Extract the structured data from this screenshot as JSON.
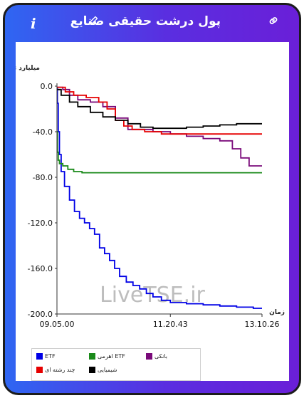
{
  "header": {
    "title": "پول درشت حقیقی صنایع",
    "icons": [
      "info-icon",
      "pencil-icon",
      "link-icon"
    ]
  },
  "watermark": "LiveTSE.ir",
  "chart_data": {
    "type": "line",
    "ylabel": "میلیارد تومان",
    "xlabel": "زمان",
    "ylim": [
      -200,
      0
    ],
    "yticks": [
      "0.0",
      "-40.0",
      "-80.0",
      "-120.0",
      "-160.0",
      "-200.0"
    ],
    "xticks": [
      "09.05.00",
      "11.20.43",
      "13.10.26"
    ],
    "xlim": [
      "09.05.00",
      "13.10.26"
    ],
    "legend_position": "bottom-left",
    "series": [
      {
        "name": "ETF",
        "color": "#0000e6",
        "x": [
          "09.05.00",
          "09.05.30",
          "09.06.30",
          "09.08.00",
          "09.10.00",
          "09.14.00",
          "09.20.00",
          "09.26.00",
          "09.32.00",
          "09.38.00",
          "09.44.00",
          "09.50.00",
          "09.56.00",
          "10.02.00",
          "10.08.00",
          "10.14.00",
          "10.20.00",
          "10.28.00",
          "10.36.00",
          "10.44.00",
          "10.52.00",
          "11.00.00",
          "11.10.00",
          "11.20.43",
          "11.40.00",
          "12.00.00",
          "12.20.00",
          "12.40.00",
          "13.00.00",
          "13.10.26"
        ],
        "values": [
          -2,
          -15,
          -40,
          -60,
          -75,
          -88,
          -100,
          -110,
          -116,
          -120,
          -125,
          -130,
          -142,
          -147,
          -153,
          -160,
          -167,
          -172,
          -175,
          -178,
          -182,
          -185,
          -188,
          -190,
          -191,
          -192,
          -193,
          -194,
          -195,
          -195
        ]
      },
      {
        "name": "ETF اهرمی",
        "color": "#1a8a1a",
        "x": [
          "09.05.00",
          "09.05.30",
          "09.06.30",
          "09.08.00",
          "09.12.00",
          "09.18.00",
          "09.25.00",
          "09.35.00",
          "10.00.00",
          "11.00.00",
          "12.00.00",
          "13.10.26"
        ],
        "values": [
          -40,
          -58,
          -65,
          -68,
          -70,
          -73,
          -75,
          -76,
          -76,
          -76,
          -76,
          -76
        ]
      },
      {
        "name": "بانکی",
        "color": "#7a0a7a",
        "x": [
          "09.05.00",
          "09.12.00",
          "09.20.00",
          "09.30.00",
          "09.45.00",
          "10.00.00",
          "10.15.00",
          "10.30.00",
          "11.00.00",
          "11.20.43",
          "11.40.00",
          "12.00.00",
          "12.20.00",
          "12.35.00",
          "12.45.00",
          "12.55.00",
          "13.10.26"
        ],
        "values": [
          -1,
          -3,
          -8,
          -12,
          -14,
          -18,
          -28,
          -38,
          -40,
          -42,
          -44,
          -46,
          -48,
          -55,
          -63,
          -70,
          -70
        ]
      },
      {
        "name": "چند رشته ای",
        "color": "#e60000",
        "x": [
          "09.05.00",
          "09.15.00",
          "09.25.00",
          "09.40.00",
          "09.55.00",
          "10.05.00",
          "10.15.00",
          "10.25.00",
          "10.35.00",
          "10.50.00",
          "11.10.00",
          "12.00.00",
          "13.10.26"
        ],
        "values": [
          -1,
          -5,
          -8,
          -10,
          -14,
          -20,
          -30,
          -35,
          -38,
          -40,
          -42,
          -42,
          -42
        ]
      },
      {
        "name": "شیمیایی",
        "color": "#000000",
        "x": [
          "09.05.00",
          "09.10.00",
          "09.20.00",
          "09.30.00",
          "09.45.00",
          "10.00.00",
          "10.15.00",
          "10.30.00",
          "10.45.00",
          "11.00.00",
          "11.20.43",
          "11.40.00",
          "12.00.00",
          "12.20.00",
          "12.40.00",
          "13.00.00",
          "13.10.26"
        ],
        "values": [
          -3,
          -8,
          -14,
          -18,
          -23,
          -27,
          -30,
          -33,
          -36,
          -37,
          -37,
          -36,
          -35,
          -34,
          -33,
          -33,
          -33
        ]
      }
    ]
  }
}
